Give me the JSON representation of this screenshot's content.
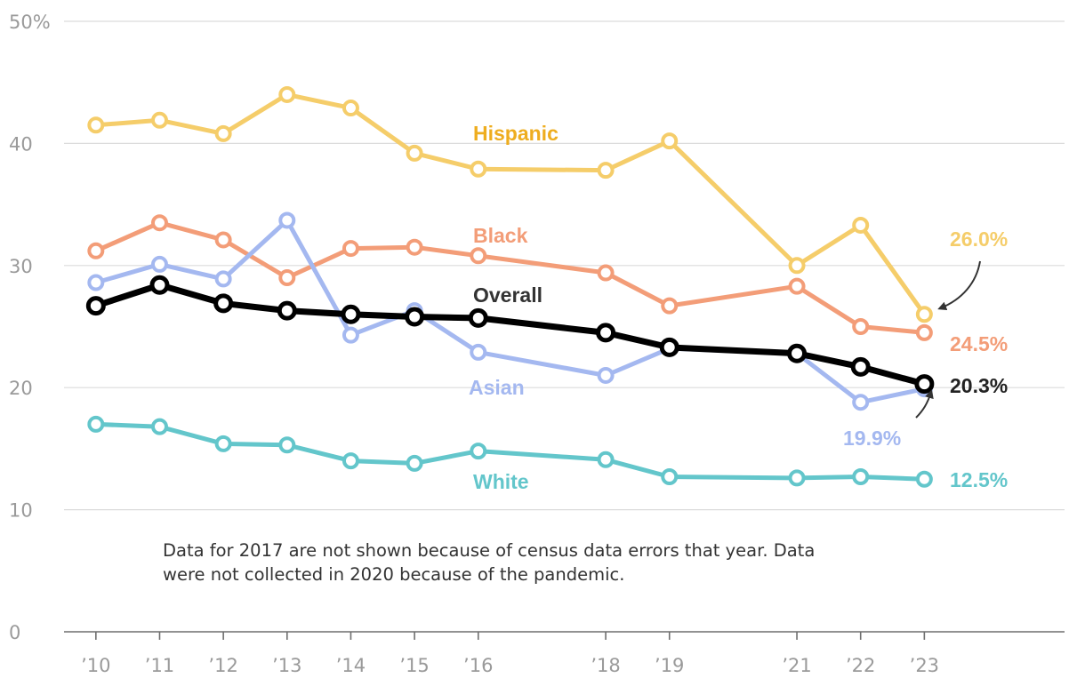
{
  "chart_data": {
    "type": "line",
    "ylim": [
      0,
      50
    ],
    "yticks": [
      {
        "value": 0,
        "label": "0"
      },
      {
        "value": 10,
        "label": "10"
      },
      {
        "value": 20,
        "label": "20"
      },
      {
        "value": 30,
        "label": "30"
      },
      {
        "value": 40,
        "label": "40"
      },
      {
        "value": 50,
        "label": "50%"
      }
    ],
    "x": [
      2010,
      2011,
      2012,
      2013,
      2014,
      2015,
      2016,
      2018,
      2019,
      2021,
      2022,
      2023
    ],
    "x_tick_labels": [
      "’10",
      "’11",
      "’12",
      "’13",
      "’14",
      "’15",
      "’16",
      "’18",
      "’19",
      "’21",
      "’22",
      "’23"
    ],
    "xlim": [
      2009.5,
      2025.2
    ],
    "series": [
      {
        "name": "Hispanic",
        "color": "#f5cd6a",
        "label_color": "#eead1f",
        "emphasis": false,
        "values": [
          41.5,
          41.9,
          40.8,
          44.0,
          42.9,
          39.2,
          37.9,
          37.8,
          40.2,
          30.0,
          33.3,
          26.0
        ],
        "end_label": "26.0%",
        "end_label_color": "#f5cd6a"
      },
      {
        "name": "Black",
        "color": "#f39d78",
        "label_color": "#f39d78",
        "emphasis": false,
        "values": [
          31.2,
          33.5,
          32.1,
          29.0,
          31.4,
          31.5,
          30.8,
          29.4,
          26.7,
          28.3,
          25.0,
          24.5
        ],
        "end_label": "24.5%",
        "end_label_color": "#f39d78"
      },
      {
        "name": "Asian",
        "color": "#a4b8f0",
        "label_color": "#a4b8f0",
        "emphasis": false,
        "values": [
          28.6,
          30.1,
          28.9,
          33.7,
          24.3,
          26.3,
          22.9,
          21.0,
          23.2,
          22.8,
          18.8,
          19.9
        ],
        "end_label": "19.9%",
        "end_label_color": "#a4b8f0"
      },
      {
        "name": "Overall",
        "color": "#000000",
        "label_color": "#333333",
        "emphasis": true,
        "values": [
          26.7,
          28.4,
          26.9,
          26.3,
          26.0,
          25.8,
          25.7,
          24.5,
          23.3,
          22.8,
          21.7,
          20.3
        ],
        "end_label": "20.3%",
        "end_label_color": "#222222"
      },
      {
        "name": "White",
        "color": "#63c6cb",
        "label_color": "#63c6cb",
        "emphasis": false,
        "values": [
          17.0,
          16.8,
          15.4,
          15.3,
          14.0,
          13.8,
          14.8,
          14.1,
          12.7,
          12.6,
          12.7,
          12.5
        ],
        "end_label": "12.5%",
        "end_label_color": "#63c6cb"
      }
    ],
    "note": [
      "Data for 2017 are not shown because of census data errors that year. Data",
      "were not collected in 2020 because of the pandemic."
    ],
    "grid": true,
    "legend": "inline"
  }
}
